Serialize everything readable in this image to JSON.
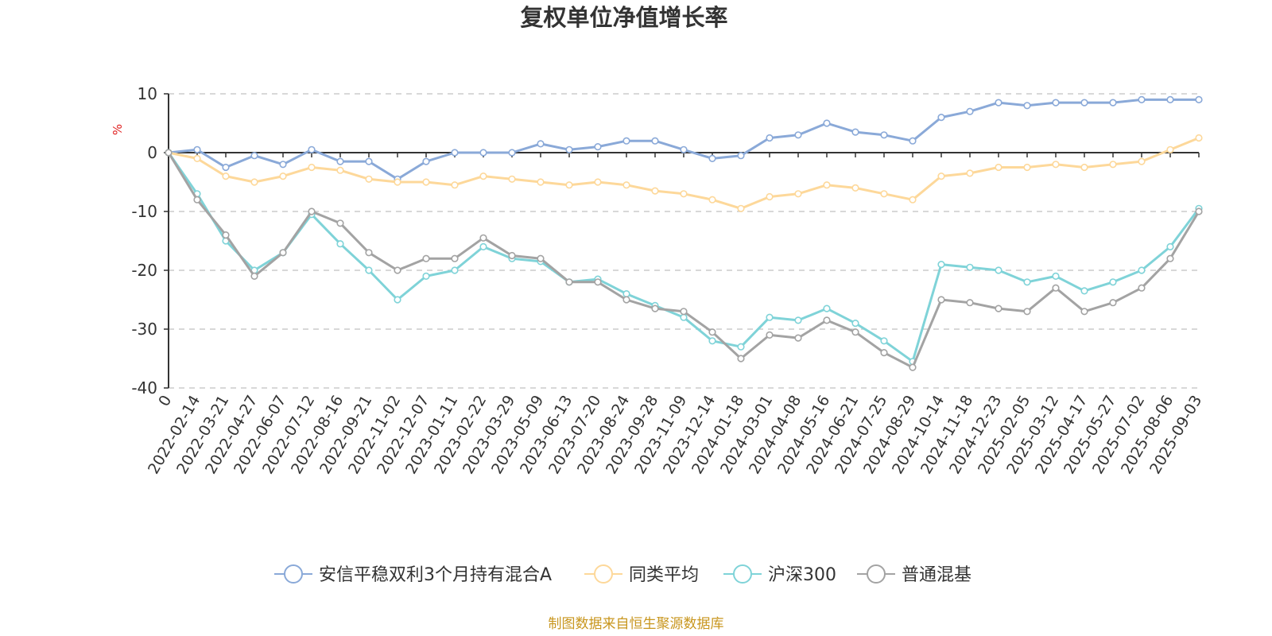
{
  "chart_data": {
    "type": "line",
    "title": "复权单位净值增长率",
    "ylabel": "%",
    "source": "制图数据来自恒生聚源数据库",
    "ylim": [
      -40,
      10
    ],
    "yticks": [
      10,
      0,
      -10,
      -20,
      -30,
      -40
    ],
    "x_tick_labels": [
      "0",
      "2022-02-14",
      "2022-03-21",
      "2022-04-27",
      "2022-06-07",
      "2022-07-12",
      "2022-08-16",
      "2022-09-21",
      "2022-11-02",
      "2022-12-07",
      "2023-01-11",
      "2023-02-22",
      "2023-03-29",
      "2023-05-09",
      "2023-06-13",
      "2023-07-20",
      "2023-08-24",
      "2023-09-28",
      "2023-11-09",
      "2023-12-14",
      "2024-01-18",
      "2024-03-01",
      "2024-04-08",
      "2024-05-16",
      "2024-06-21",
      "2024-07-25",
      "2024-08-29",
      "2024-10-14",
      "2024-11-18",
      "2024-12-23",
      "2025-02-05",
      "2025-03-12",
      "2025-04-17",
      "2025-05-27",
      "2025-07-02",
      "2025-08-06",
      "2025-09-03"
    ],
    "grid": true,
    "legend_position": "bottom",
    "series": [
      {
        "name": "安信平稳双利3个月持有混合A",
        "color": "#8aa9d8",
        "values": [
          0,
          0.5,
          -2.5,
          -0.5,
          -2.0,
          0.5,
          -1.5,
          -1.5,
          -4.5,
          -1.5,
          0.0,
          0.0,
          0.0,
          1.5,
          0.5,
          1.0,
          2.0,
          2.0,
          0.5,
          -1.0,
          -0.5,
          2.5,
          3.0,
          5.0,
          3.5,
          3.0,
          2.0,
          6.0,
          7.0,
          8.5,
          8.0,
          8.5,
          8.5,
          8.5,
          9.0,
          9.0,
          9.0
        ]
      },
      {
        "name": "同类平均",
        "color": "#fdd89a",
        "values": [
          0,
          -1.0,
          -4.0,
          -5.0,
          -4.0,
          -2.5,
          -3.0,
          -4.5,
          -5.0,
          -5.0,
          -5.5,
          -4.0,
          -4.5,
          -5.0,
          -5.5,
          -5.0,
          -5.5,
          -6.5,
          -7.0,
          -8.0,
          -9.5,
          -7.5,
          -7.0,
          -5.5,
          -6.0,
          -7.0,
          -8.0,
          -4.0,
          -3.5,
          -2.5,
          -2.5,
          -2.0,
          -2.5,
          -2.0,
          -1.5,
          0.5,
          2.5
        ]
      },
      {
        "name": "沪深300",
        "color": "#7fd3d8",
        "values": [
          0,
          -7.0,
          -15.0,
          -20.0,
          -17.0,
          -10.5,
          -15.5,
          -20.0,
          -25.0,
          -21.0,
          -20.0,
          -16.0,
          -18.0,
          -18.5,
          -22.0,
          -21.5,
          -24.0,
          -26.0,
          -28.0,
          -32.0,
          -33.0,
          -28.0,
          -28.5,
          -26.5,
          -29.0,
          -32.0,
          -35.5,
          -19.0,
          -19.5,
          -20.0,
          -22.0,
          -21.0,
          -23.5,
          -22.0,
          -20.0,
          -16.0,
          -9.5
        ]
      },
      {
        "name": "普通混基",
        "color": "#a3a3a3",
        "values": [
          0,
          -8.0,
          -14.0,
          -21.0,
          -17.0,
          -10.0,
          -12.0,
          -17.0,
          -20.0,
          -18.0,
          -18.0,
          -14.5,
          -17.5,
          -18.0,
          -22.0,
          -22.0,
          -25.0,
          -26.5,
          -27.0,
          -30.5,
          -35.0,
          -31.0,
          -31.5,
          -28.5,
          -30.5,
          -34.0,
          -36.5,
          -25.0,
          -25.5,
          -26.5,
          -27.0,
          -23.0,
          -27.0,
          -25.5,
          -23.0,
          -18.0,
          -10.0
        ]
      }
    ]
  }
}
